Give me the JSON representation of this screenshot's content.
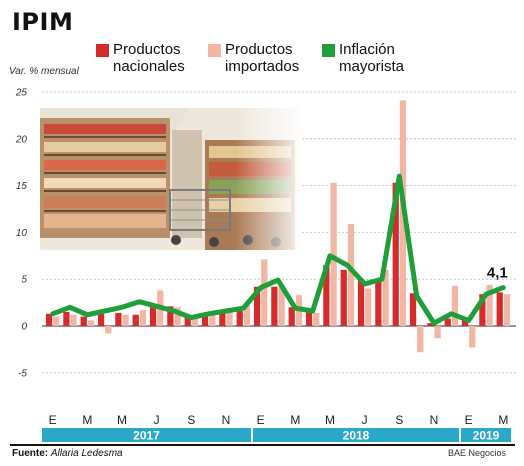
{
  "title": "IPIM",
  "legend": [
    {
      "line1": "Productos",
      "line2": "nacionales",
      "color": "#d62b2b",
      "kind": "bar"
    },
    {
      "line1": "Productos",
      "line2": "importados",
      "color": "#f1b6a4",
      "kind": "bar"
    },
    {
      "line1": "Inflación",
      "line2": "mayorista",
      "color": "#1f9e3a",
      "kind": "line"
    }
  ],
  "source_label": "Fuente:",
  "source_value": "Allaria Ledesma",
  "brand": "BAE Negocios",
  "photo_description": "supermarket-shelves-photo",
  "chart_data": {
    "type": "bar",
    "ylabel": "Var. % mensual",
    "ylim": [
      -7,
      25
    ],
    "yticks": [
      25,
      20,
      15,
      10,
      5,
      0,
      -5
    ],
    "month_labels": [
      "E",
      "M",
      "M",
      "J",
      "S",
      "N",
      "E",
      "M",
      "M",
      "J",
      "S",
      "N",
      "E",
      "M"
    ],
    "years": [
      "2017",
      "2018",
      "2019"
    ],
    "categories": [
      "Ene-17",
      "Feb-17",
      "Mar-17",
      "Abr-17",
      "May-17",
      "Jun-17",
      "Jul-17",
      "Ago-17",
      "Sep-17",
      "Oct-17",
      "Nov-17",
      "Dic-17",
      "Ene-18",
      "Feb-18",
      "Mar-18",
      "Abr-18",
      "May-18",
      "Jun-18",
      "Jul-18",
      "Ago-18",
      "Sep-18",
      "Oct-18",
      "Nov-18",
      "Dic-18",
      "Ene-19",
      "Feb-19",
      "Mar-19"
    ],
    "series": [
      {
        "name": "Productos nacionales",
        "type": "bar",
        "color": "#d62b2b",
        "values": [
          1.3,
          1.5,
          1.0,
          1.3,
          1.4,
          1.2,
          2.3,
          2.1,
          1.0,
          1.3,
          1.4,
          1.6,
          4.2,
          4.2,
          2.0,
          1.6,
          6.5,
          6.0,
          5.0,
          4.8,
          15.3,
          3.5,
          0.3,
          0.8,
          0.6,
          3.4,
          3.6
        ]
      },
      {
        "name": "Productos importados",
        "type": "bar",
        "color": "#f1b6a4",
        "values": [
          1.0,
          1.2,
          0.6,
          -0.8,
          1.2,
          1.7,
          3.8,
          2.0,
          1.0,
          1.5,
          1.6,
          2.2,
          7.1,
          4.4,
          3.3,
          1.4,
          15.3,
          10.9,
          4.0,
          6.0,
          24.1,
          -2.8,
          -1.3,
          4.3,
          -2.3,
          4.4,
          3.4
        ]
      },
      {
        "name": "Inflación mayorista",
        "type": "line",
        "color": "#1f9e3a",
        "values": [
          1.3,
          2.0,
          1.2,
          1.6,
          2.0,
          2.6,
          2.1,
          1.6,
          0.9,
          1.3,
          1.6,
          1.9,
          4.1,
          4.9,
          1.9,
          1.6,
          7.5,
          6.5,
          4.5,
          5.0,
          16.0,
          3.2,
          0.3,
          1.3,
          0.6,
          3.4,
          4.1
        ]
      }
    ],
    "annotation": {
      "text": "4,1",
      "category": "Mar-19"
    },
    "grid": "dashed-horizontal"
  }
}
